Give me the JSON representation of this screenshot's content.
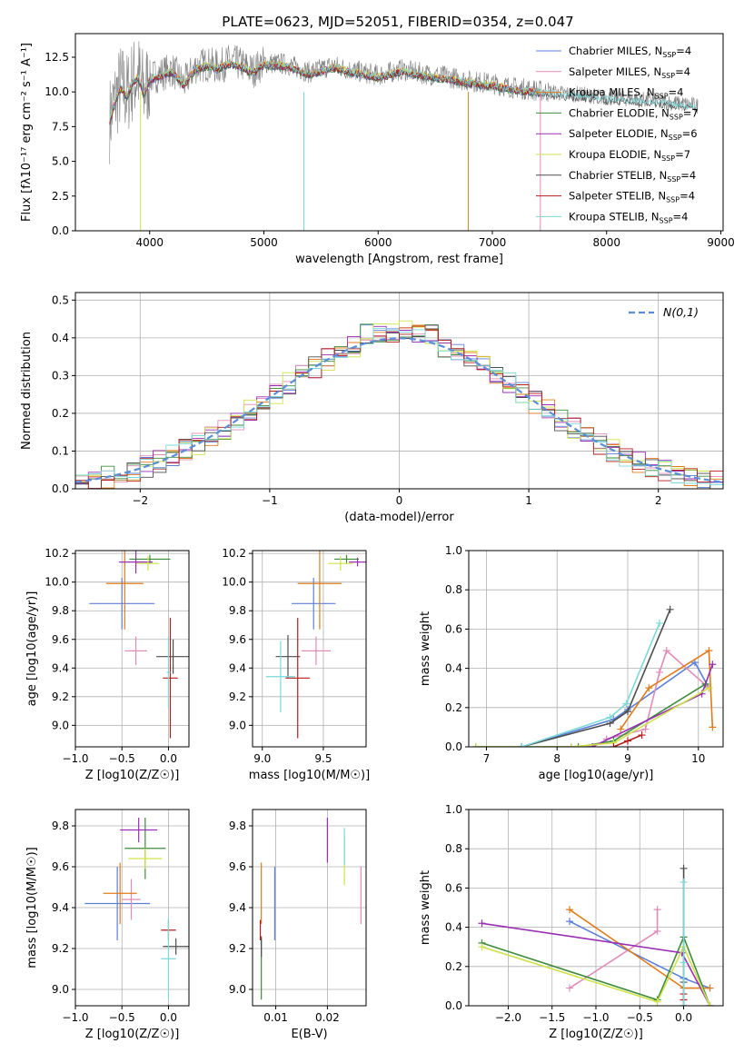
{
  "figure_title": "PLATE=0623, MJD=52051, FIBERID=0354, z=0.047",
  "models": [
    {
      "name": "Chabrier MILES",
      "nssp": "4",
      "color": "#5b7fd9"
    },
    {
      "name": "Salpeter MILES",
      "nssp": "4",
      "color": "#e08bb8"
    },
    {
      "name": "Kroupa MILES",
      "nssp": "4",
      "color": "#e07b1a"
    },
    {
      "name": "Chabrier ELODIE",
      "nssp": "7",
      "color": "#3d8c3d"
    },
    {
      "name": "Salpeter ELODIE",
      "nssp": "6",
      "color": "#9a2fb5"
    },
    {
      "name": "Kroupa ELODIE",
      "nssp": "7",
      "color": "#cfe24a"
    },
    {
      "name": "Chabrier STELIB",
      "nssp": "4",
      "color": "#4d4d4d"
    },
    {
      "name": "Salpeter STELIB",
      "nssp": "4",
      "color": "#b81d1d"
    },
    {
      "name": "Kroupa STELIB",
      "nssp": "4",
      "color": "#7ad8da"
    }
  ],
  "nssp_prefix": "N",
  "nssp_sub": "SSP",
  "chart_data": [
    {
      "id": "spectrum",
      "type": "line",
      "xlabel": "wavelength [Angstrom, rest frame]",
      "ylabel": "Flux [fλ10⁻¹⁷ erg cm⁻² s⁻¹ A⁻¹]",
      "xlim": [
        3350,
        9020
      ],
      "ylim": [
        0,
        14.2
      ],
      "xticks": [
        4000,
        5000,
        6000,
        7000,
        8000,
        9000
      ],
      "yticks": [
        0.0,
        2.5,
        5.0,
        7.5,
        10.0,
        12.5
      ],
      "data_series": {
        "name": "data",
        "color": "#808080",
        "x": [
          3650,
          3700,
          3750,
          3800,
          3850,
          3900,
          3950,
          4000,
          4100,
          4200,
          4300,
          4400,
          4500,
          4600,
          4700,
          4800,
          4900,
          5000,
          5200,
          5400,
          5600,
          5800,
          6000,
          6200,
          6400,
          6600,
          6800,
          7000,
          7200,
          7400,
          7500,
          7600,
          7800,
          8000,
          8200,
          8400,
          8600,
          8800
        ],
        "y": [
          8.0,
          9.5,
          10.5,
          9.8,
          10.8,
          11.2,
          10.0,
          11.0,
          11.3,
          11.6,
          10.6,
          11.8,
          12.0,
          11.8,
          12.2,
          12.0,
          11.5,
          12.1,
          12.0,
          11.4,
          11.9,
          11.5,
          11.2,
          11.6,
          11.3,
          11.1,
          10.8,
          10.6,
          10.3,
          10.1,
          10.0,
          9.9,
          9.8,
          9.6,
          9.5,
          9.4,
          9.2,
          9.0
        ]
      },
      "dips": [
        {
          "x": 3920,
          "y": 0.0
        },
        {
          "x": 5350,
          "y": 0.0
        },
        {
          "x": 6790,
          "y": 0.0
        },
        {
          "x": 7420,
          "y": 0.0
        }
      ]
    },
    {
      "id": "residuals",
      "type": "histogram",
      "xlabel": "(data-model)/error",
      "ylabel": "Normed distribution",
      "xlim": [
        -2.5,
        2.5
      ],
      "ylim": [
        0,
        0.52
      ],
      "xticks": [
        -2,
        -1,
        0,
        1,
        2
      ],
      "yticks": [
        0.0,
        0.1,
        0.2,
        0.3,
        0.4,
        0.5
      ],
      "normal_label": "N(0,1)",
      "normal_color": "#5b8dd9"
    },
    {
      "id": "age_vs_z",
      "type": "errorbar",
      "xlabel": "Z [log10(Z/Z☉)]",
      "ylabel": "age  [log10(age/yr)]",
      "xlim": [
        -1.0,
        0.22
      ],
      "ylim": [
        8.85,
        10.22
      ],
      "xticks": [
        -1.0,
        -0.5,
        0.0
      ],
      "yticks": [
        9.0,
        9.2,
        9.4,
        9.6,
        9.8,
        10.0,
        10.2
      ],
      "points": [
        {
          "x": -0.5,
          "y": 9.85,
          "xerr": 0.35,
          "yerr": 0.18
        },
        {
          "x": -0.35,
          "y": 9.52,
          "xerr": 0.12,
          "yerr": 0.1
        },
        {
          "x": -0.47,
          "y": 9.99,
          "xerr": 0.2,
          "yerr": 0.32
        },
        {
          "x": -0.2,
          "y": 10.16,
          "xerr": 0.22,
          "yerr": 0.03
        },
        {
          "x": -0.35,
          "y": 10.14,
          "xerr": 0.18,
          "yerr": 0.08
        },
        {
          "x": -0.22,
          "y": 10.13,
          "xerr": 0.12,
          "yerr": 0.05
        },
        {
          "x": 0.05,
          "y": 9.48,
          "xerr": 0.18,
          "yerr": 0.12
        },
        {
          "x": 0.02,
          "y": 9.33,
          "xerr": 0.08,
          "yerr": 0.42
        },
        {
          "x": 0.0,
          "y": 9.37,
          "xerr": 0.02,
          "yerr": 0.25
        }
      ]
    },
    {
      "id": "age_vs_mass",
      "type": "errorbar",
      "xlabel": "mass [log10(M/M☉)]",
      "ylabel": "",
      "xlim": [
        8.92,
        9.85
      ],
      "ylim": [
        8.85,
        10.22
      ],
      "xticks": [
        9.0,
        9.5
      ],
      "yticks": [
        9.0,
        9.2,
        9.4,
        9.6,
        9.8,
        10.0,
        10.2
      ],
      "points": [
        {
          "x": 9.42,
          "y": 9.85,
          "xerr": 0.18,
          "yerr": 0.18
        },
        {
          "x": 9.44,
          "y": 9.52,
          "xerr": 0.12,
          "yerr": 0.1
        },
        {
          "x": 9.47,
          "y": 9.99,
          "xerr": 0.18,
          "yerr": 0.32
        },
        {
          "x": 9.69,
          "y": 10.16,
          "xerr": 0.1,
          "yerr": 0.03
        },
        {
          "x": 9.78,
          "y": 10.14,
          "xerr": 0.07,
          "yerr": 0.03
        },
        {
          "x": 9.64,
          "y": 10.13,
          "xerr": 0.1,
          "yerr": 0.05
        },
        {
          "x": 9.21,
          "y": 9.48,
          "xerr": 0.1,
          "yerr": 0.15
        },
        {
          "x": 9.29,
          "y": 9.33,
          "xerr": 0.1,
          "yerr": 0.42
        },
        {
          "x": 9.15,
          "y": 9.34,
          "xerr": 0.12,
          "yerr": 0.25
        }
      ]
    },
    {
      "id": "weight_vs_age",
      "type": "line",
      "xlabel": "age  [log10(age/yr)]",
      "ylabel": "mass weight",
      "xlim": [
        6.75,
        10.35
      ],
      "ylim": [
        0,
        1.0
      ],
      "xticks": [
        7,
        8,
        9,
        10
      ],
      "yticks": [
        0.0,
        0.2,
        0.4,
        0.6,
        0.8,
        1.0
      ],
      "series": [
        {
          "x": [
            7.5,
            8.8,
            9.0,
            9.95,
            10.15
          ],
          "y": [
            0.0,
            0.14,
            0.19,
            0.43,
            0.3
          ]
        },
        {
          "x": [
            8.7,
            9.25,
            9.45,
            9.55,
            10.15
          ],
          "y": [
            0.04,
            0.09,
            0.38,
            0.49,
            0.3
          ]
        },
        {
          "x": [
            8.9,
            9.3,
            10.15,
            10.2
          ],
          "y": [
            0.09,
            0.3,
            0.49,
            0.1
          ]
        },
        {
          "x": [
            6.85,
            8.3,
            8.8,
            10.1
          ],
          "y": [
            0.0,
            0.0,
            0.03,
            0.32
          ]
        },
        {
          "x": [
            8.2,
            8.5,
            10.05,
            10.2
          ],
          "y": [
            0.0,
            0.0,
            0.27,
            0.42
          ]
        },
        {
          "x": [
            6.85,
            8.2,
            8.8,
            10.15
          ],
          "y": [
            0.0,
            0.0,
            0.02,
            0.3
          ]
        },
        {
          "x": [
            7.5,
            8.75,
            9.0,
            9.6
          ],
          "y": [
            0.0,
            0.12,
            0.18,
            0.7
          ]
        },
        {
          "x": [
            8.8,
            9.0,
            9.2
          ],
          "y": [
            0.0,
            0.03,
            0.06
          ]
        },
        {
          "x": [
            7.5,
            8.75,
            8.98,
            9.45
          ],
          "y": [
            0.0,
            0.15,
            0.22,
            0.63
          ]
        }
      ]
    },
    {
      "id": "mass_vs_z",
      "type": "errorbar",
      "xlabel": "Z [log10(Z/Z☉)]",
      "ylabel": "mass [log10(M/M☉)]",
      "xlim": [
        -1.0,
        0.22
      ],
      "ylim": [
        8.92,
        9.88
      ],
      "xticks": [
        -1.0,
        -0.5,
        0.0
      ],
      "yticks": [
        9.0,
        9.2,
        9.4,
        9.6,
        9.8
      ],
      "points": [
        {
          "x": -0.55,
          "y": 9.42,
          "xerr": 0.35,
          "yerr": 0.18
        },
        {
          "x": -0.4,
          "y": 9.44,
          "xerr": 0.1,
          "yerr": 0.1
        },
        {
          "x": -0.52,
          "y": 9.47,
          "xerr": 0.18,
          "yerr": 0.15
        },
        {
          "x": -0.25,
          "y": 9.69,
          "xerr": 0.22,
          "yerr": 0.15
        },
        {
          "x": -0.32,
          "y": 9.78,
          "xerr": 0.2,
          "yerr": 0.06
        },
        {
          "x": -0.25,
          "y": 9.64,
          "xerr": 0.18,
          "yerr": 0.05
        },
        {
          "x": 0.08,
          "y": 9.21,
          "xerr": 0.14,
          "yerr": 0.04
        },
        {
          "x": 0.0,
          "y": 9.29,
          "xerr": 0.08,
          "yerr": 0.05
        },
        {
          "x": 0.0,
          "y": 9.15,
          "xerr": 0.08,
          "yerr": 0.2
        }
      ]
    },
    {
      "id": "mass_vs_ebv",
      "type": "errorbar",
      "xlabel": "E(B-V)",
      "ylabel": "",
      "xlim": [
        0.0055,
        0.0275
      ],
      "ylim": [
        8.92,
        9.88
      ],
      "xticks": [
        0.01,
        0.02
      ],
      "yticks": [
        9.0,
        9.2,
        9.4,
        9.6,
        9.8
      ],
      "points": [
        {
          "x": 0.0098,
          "y": 9.42,
          "xerr": 0,
          "yerr": 0.18
        },
        {
          "x": 0.0265,
          "y": 9.46,
          "xerr": 0,
          "yerr": 0.14
        },
        {
          "x": 0.0072,
          "y": 9.47,
          "xerr": 0,
          "yerr": 0.15
        },
        {
          "x": 0.0072,
          "y": 9.1,
          "xerr": 0,
          "yerr": 0.15
        },
        {
          "x": 0.02,
          "y": 9.73,
          "xerr": 0,
          "yerr": 0.11
        },
        {
          "x": 0.0233,
          "y": 9.63,
          "xerr": 0,
          "yerr": 0.12
        },
        {
          "x": 0.0072,
          "y": 9.21,
          "xerr": 0,
          "yerr": 0.05
        },
        {
          "x": 0.007,
          "y": 9.29,
          "xerr": 0,
          "yerr": 0.05
        },
        {
          "x": 0.0233,
          "y": 9.7,
          "xerr": 0,
          "yerr": 0.09
        }
      ]
    },
    {
      "id": "weight_vs_z",
      "type": "line",
      "xlabel": "Z [log10(Z/Z☉)]",
      "ylabel": "mass weight",
      "xlim": [
        -2.45,
        0.45
      ],
      "ylim": [
        0,
        1.0
      ],
      "xticks": [
        -2.0,
        -1.5,
        -1.0,
        -0.5,
        0.0
      ],
      "yticks": [
        0.0,
        0.2,
        0.4,
        0.6,
        0.8,
        1.0
      ],
      "series": [
        {
          "x": [
            -1.3,
            0.0,
            0.3
          ],
          "y": [
            0.43,
            0.14,
            0.09
          ]
        },
        {
          "x": [
            -1.3,
            -0.3,
            -0.3
          ],
          "y": [
            0.09,
            0.38,
            0.49
          ]
        },
        {
          "x": [
            -1.3,
            0.0,
            0.3
          ],
          "y": [
            0.49,
            0.09,
            0.09
          ]
        },
        {
          "x": [
            -2.3,
            -0.3,
            0.0,
            0.3
          ],
          "y": [
            0.32,
            0.03,
            0.35,
            0.0
          ]
        },
        {
          "x": [
            -2.3,
            -0.02,
            0.3
          ],
          "y": [
            0.42,
            0.27,
            0.0
          ]
        },
        {
          "x": [
            -2.3,
            -0.3,
            0.0,
            0.3
          ],
          "y": [
            0.3,
            0.02,
            0.3,
            0.0
          ]
        },
        {
          "x": [
            0.0,
            0.0,
            0.0
          ],
          "y": [
            0.0,
            0.12,
            0.7
          ]
        },
        {
          "x": [
            0.0,
            0.0
          ],
          "y": [
            0.03,
            0.06
          ]
        },
        {
          "x": [
            0.0,
            0.0,
            0.0
          ],
          "y": [
            0.0,
            0.22,
            0.63
          ]
        }
      ]
    }
  ]
}
